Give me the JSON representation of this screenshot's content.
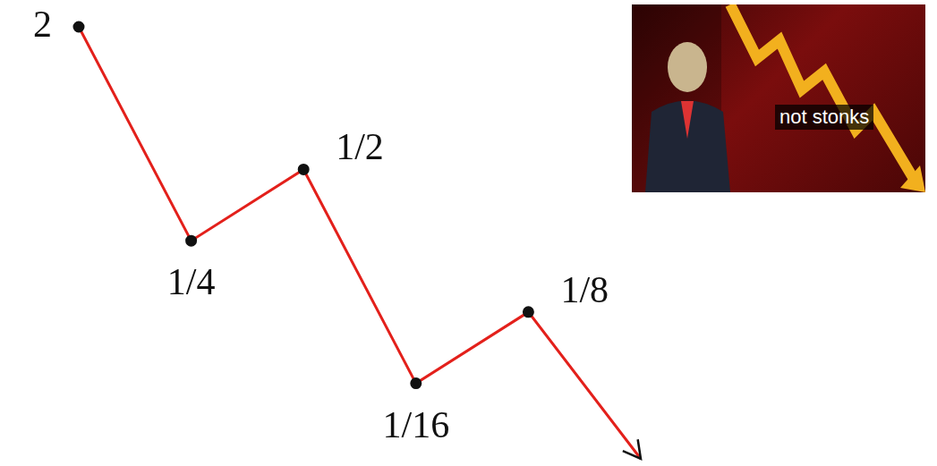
{
  "chart_data": {
    "type": "line",
    "categories": [
      null,
      null,
      null,
      null,
      null,
      null
    ],
    "values": [
      2,
      0.25,
      0.5,
      0.0625,
      0.125,
      0.03
    ],
    "value_labels": [
      "2",
      "1/4",
      "1/2",
      "1/16",
      "1/8",
      null
    ],
    "data_labels": true,
    "color": "#e3201b",
    "marker": "circle",
    "log": "y",
    "ylim": [
      0.03,
      2
    ],
    "grid": false,
    "tick_labels": false,
    "annotation": "not stonks"
  }
}
